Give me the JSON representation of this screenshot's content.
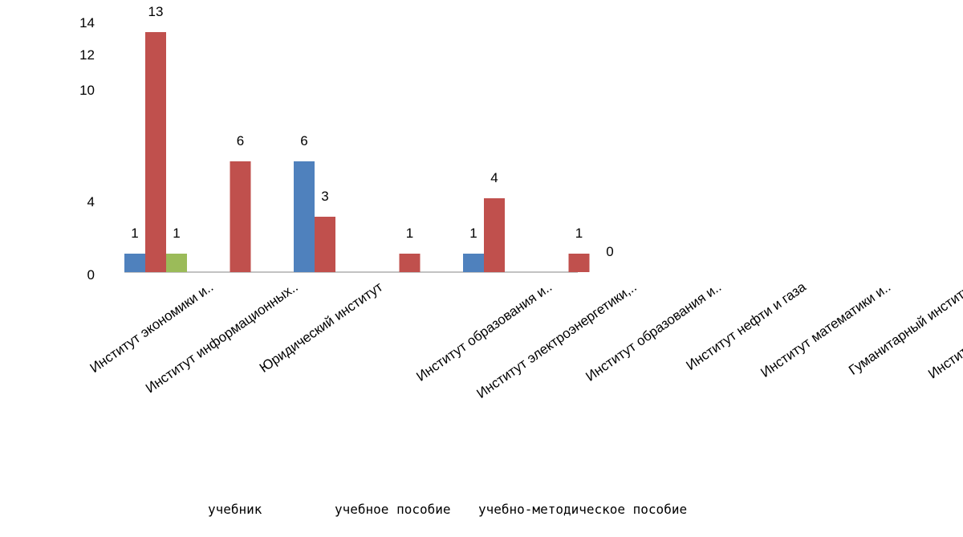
{
  "chart_data": {
    "type": "bar",
    "title": "",
    "xlabel": "",
    "ylabel": "",
    "y_ticks": [
      "0",
      "4",
      "10",
      "12",
      "14"
    ],
    "categories": [
      "Институт экономики и..",
      "Институт информационных..",
      "Юридический институт",
      "",
      "Институт образования и..",
      "Институт электроэнергетики,..",
      "Институт образования и..",
      "Институт нефти и газа",
      "Институт математики и..",
      "Гуманитарный институт",
      "Институт строительства,"
    ],
    "series": [
      {
        "name": "учебник",
        "color": "#4f81bd",
        "values": [
          1,
          0,
          6,
          0,
          1,
          0,
          0,
          0,
          0,
          0,
          0
        ],
        "labels": [
          "1",
          "",
          "6",
          "",
          "1",
          "",
          "",
          "",
          "",
          "",
          ""
        ]
      },
      {
        "name": "учебное пособие",
        "color": "#c0504d",
        "values": [
          13,
          6,
          3,
          1,
          4,
          1,
          0,
          0,
          0,
          0,
          0
        ],
        "labels": [
          "13",
          "6",
          "3",
          "1",
          "4",
          "1",
          "",
          "",
          "",
          "",
          ""
        ]
      },
      {
        "name": "учебно-методическое пособие",
        "color": "#9bbb59",
        "values": [
          1,
          0,
          0,
          0,
          0,
          0,
          0,
          0,
          0,
          0,
          0
        ],
        "labels": [
          "1",
          "",
          "",
          "",
          "",
          "",
          "",
          "",
          "",
          "",
          ""
        ]
      }
    ],
    "annotations": [
      "0"
    ],
    "legend_position": "bottom"
  }
}
